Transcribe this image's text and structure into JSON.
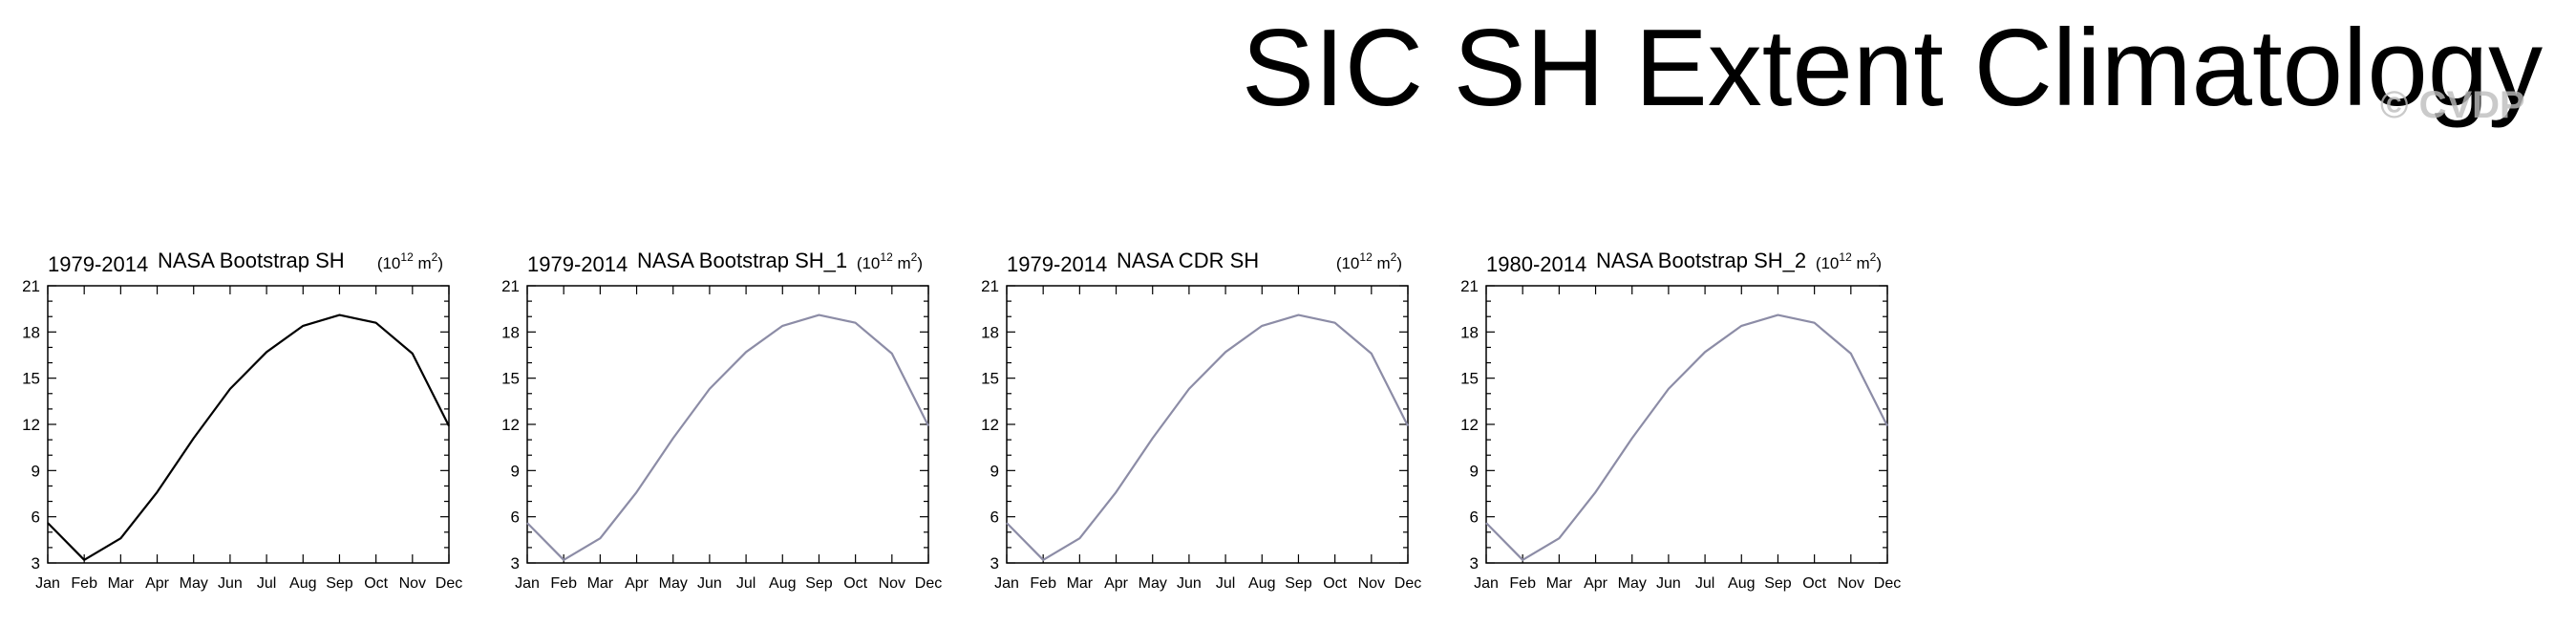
{
  "page": {
    "title": "SIC SH Extent Climatology",
    "watermark": "© CVDP"
  },
  "chart_data": [
    {
      "type": "line",
      "period": "1979-2014",
      "title": "NASA Bootstrap SH",
      "units": "(10¹² m²)",
      "units_base": "(10",
      "units_exp": "12",
      "units_mid": " m",
      "units_exp2": "2",
      "units_end": ")",
      "categories": [
        "Jan",
        "Feb",
        "Mar",
        "Apr",
        "May",
        "Jun",
        "Jul",
        "Aug",
        "Sep",
        "Oct",
        "Nov",
        "Dec"
      ],
      "values": [
        5.6,
        3.2,
        4.6,
        7.6,
        11.1,
        14.3,
        16.7,
        18.4,
        19.1,
        18.6,
        16.6,
        11.9
      ],
      "ylim": [
        3,
        21
      ],
      "yticks": [
        3,
        6,
        9,
        12,
        15,
        18,
        21
      ],
      "line_color": "#000000"
    },
    {
      "type": "line",
      "period": "1979-2014",
      "title": "NASA Bootstrap SH_1",
      "units": "(10¹² m²)",
      "units_base": "(10",
      "units_exp": "12",
      "units_mid": " m",
      "units_exp2": "2",
      "units_end": ")",
      "categories": [
        "Jan",
        "Feb",
        "Mar",
        "Apr",
        "May",
        "Jun",
        "Jul",
        "Aug",
        "Sep",
        "Oct",
        "Nov",
        "Dec"
      ],
      "values": [
        5.6,
        3.2,
        4.6,
        7.6,
        11.1,
        14.3,
        16.7,
        18.4,
        19.1,
        18.6,
        16.6,
        11.9
      ],
      "ylim": [
        3,
        21
      ],
      "yticks": [
        3,
        6,
        9,
        12,
        15,
        18,
        21
      ],
      "line_color": "#8c8ca6"
    },
    {
      "type": "line",
      "period": "1979-2014",
      "title": "NASA CDR SH",
      "units": "(10¹² m²)",
      "units_base": "(10",
      "units_exp": "12",
      "units_mid": " m",
      "units_exp2": "2",
      "units_end": ")",
      "categories": [
        "Jan",
        "Feb",
        "Mar",
        "Apr",
        "May",
        "Jun",
        "Jul",
        "Aug",
        "Sep",
        "Oct",
        "Nov",
        "Dec"
      ],
      "values": [
        5.6,
        3.2,
        4.6,
        7.6,
        11.1,
        14.3,
        16.7,
        18.4,
        19.1,
        18.6,
        16.6,
        11.9
      ],
      "ylim": [
        3,
        21
      ],
      "yticks": [
        3,
        6,
        9,
        12,
        15,
        18,
        21
      ],
      "line_color": "#8c8ca6"
    },
    {
      "type": "line",
      "period": "1980-2014",
      "title": "NASA Bootstrap SH_2",
      "units": "(10¹² m²)",
      "units_base": "(10",
      "units_exp": "12",
      "units_mid": " m",
      "units_exp2": "2",
      "units_end": ")",
      "categories": [
        "Jan",
        "Feb",
        "Mar",
        "Apr",
        "May",
        "Jun",
        "Jul",
        "Aug",
        "Sep",
        "Oct",
        "Nov",
        "Dec"
      ],
      "values": [
        5.6,
        3.2,
        4.6,
        7.6,
        11.1,
        14.3,
        16.7,
        18.4,
        19.1,
        18.6,
        16.6,
        11.9
      ],
      "ylim": [
        3,
        21
      ],
      "yticks": [
        3,
        6,
        9,
        12,
        15,
        18,
        21
      ],
      "line_color": "#8c8ca6"
    }
  ]
}
